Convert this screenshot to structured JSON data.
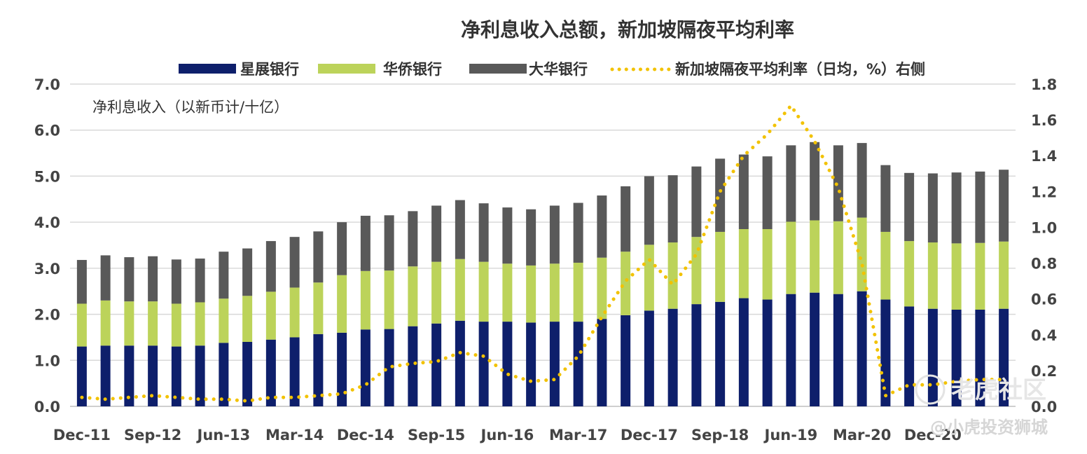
{
  "chart_data": {
    "type": "bar",
    "stacked": true,
    "title": "净利息收入总额，新加坡隔夜平均利率",
    "ylabel": "净利息收入（以新币计/十亿）",
    "ylim": [
      0,
      7
    ],
    "y2lim": [
      0,
      1.8
    ],
    "y_ticks": [
      "0.0",
      "1.0",
      "2.0",
      "3.0",
      "4.0",
      "5.0",
      "6.0",
      "7.0"
    ],
    "y2_ticks": [
      "0.0",
      "0.2",
      "0.4",
      "0.6",
      "0.8",
      "1.0",
      "1.2",
      "1.4",
      "1.6",
      "1.8"
    ],
    "x_tick_labels": [
      "Dec-11",
      "Sep-12",
      "Jun-13",
      "Mar-14",
      "Dec-14",
      "Sep-15",
      "Jun-16",
      "Mar-17",
      "Dec-17",
      "Sep-18",
      "Jun-19",
      "Mar-20",
      "Dec-20"
    ],
    "grid": true,
    "legend_position": "top",
    "categories": [
      "Dec-11",
      "Mar-12",
      "Jun-12",
      "Sep-12",
      "Dec-12",
      "Mar-13",
      "Jun-13",
      "Sep-13",
      "Dec-13",
      "Mar-14",
      "Jun-14",
      "Sep-14",
      "Dec-14",
      "Mar-15",
      "Jun-15",
      "Sep-15",
      "Dec-15",
      "Mar-16",
      "Jun-16",
      "Sep-16",
      "Dec-16",
      "Mar-17",
      "Jun-17",
      "Sep-17",
      "Dec-17",
      "Mar-18",
      "Jun-18",
      "Sep-18",
      "Dec-18",
      "Mar-19",
      "Jun-19",
      "Sep-19",
      "Dec-19",
      "Mar-20",
      "Jun-20",
      "Sep-20",
      "Dec-20",
      "Mar-21",
      "Jun-21",
      "Sep-21"
    ],
    "series": [
      {
        "name": "星展银行",
        "type": "bar",
        "color": "#0e1f6b",
        "values": [
          1.3,
          1.32,
          1.32,
          1.32,
          1.3,
          1.32,
          1.38,
          1.4,
          1.45,
          1.5,
          1.57,
          1.6,
          1.67,
          1.68,
          1.74,
          1.8,
          1.86,
          1.84,
          1.84,
          1.82,
          1.84,
          1.84,
          1.9,
          1.98,
          2.08,
          2.12,
          2.22,
          2.27,
          2.35,
          2.32,
          2.44,
          2.47,
          2.44,
          2.5,
          2.32,
          2.17,
          2.12,
          2.1,
          2.1,
          2.12
        ]
      },
      {
        "name": "华侨银行",
        "type": "bar",
        "color": "#bcd35a",
        "values": [
          0.93,
          0.98,
          0.96,
          0.96,
          0.93,
          0.94,
          0.96,
          1.0,
          1.04,
          1.08,
          1.12,
          1.25,
          1.27,
          1.27,
          1.3,
          1.34,
          1.34,
          1.3,
          1.26,
          1.24,
          1.26,
          1.28,
          1.33,
          1.38,
          1.43,
          1.44,
          1.46,
          1.52,
          1.5,
          1.53,
          1.57,
          1.57,
          1.58,
          1.6,
          1.47,
          1.42,
          1.44,
          1.44,
          1.45,
          1.46
        ]
      },
      {
        "name": "大华银行",
        "type": "bar",
        "color": "#595959",
        "values": [
          0.95,
          0.98,
          0.96,
          0.98,
          0.96,
          0.95,
          1.02,
          1.03,
          1.1,
          1.1,
          1.11,
          1.15,
          1.2,
          1.2,
          1.2,
          1.22,
          1.28,
          1.27,
          1.22,
          1.22,
          1.26,
          1.3,
          1.35,
          1.42,
          1.49,
          1.46,
          1.53,
          1.59,
          1.62,
          1.58,
          1.66,
          1.7,
          1.65,
          1.62,
          1.45,
          1.48,
          1.5,
          1.54,
          1.55,
          1.56
        ]
      },
      {
        "name": "新加坡隔夜平均利率（日均，%）右侧",
        "type": "line",
        "axis": "right",
        "color": "#f2c200",
        "values": [
          0.05,
          0.04,
          0.05,
          0.06,
          0.05,
          0.04,
          0.04,
          0.03,
          0.05,
          0.05,
          0.06,
          0.07,
          0.12,
          0.22,
          0.24,
          0.25,
          0.3,
          0.28,
          0.18,
          0.14,
          0.15,
          0.28,
          0.5,
          0.7,
          0.82,
          0.68,
          0.85,
          1.2,
          1.4,
          1.52,
          1.68,
          1.48,
          1.22,
          0.8,
          0.06,
          0.12,
          0.12,
          0.14,
          0.15,
          0.15
        ]
      }
    ]
  },
  "watermark": {
    "line1": "老虎社区",
    "line2": "@小虎投资狮城"
  }
}
